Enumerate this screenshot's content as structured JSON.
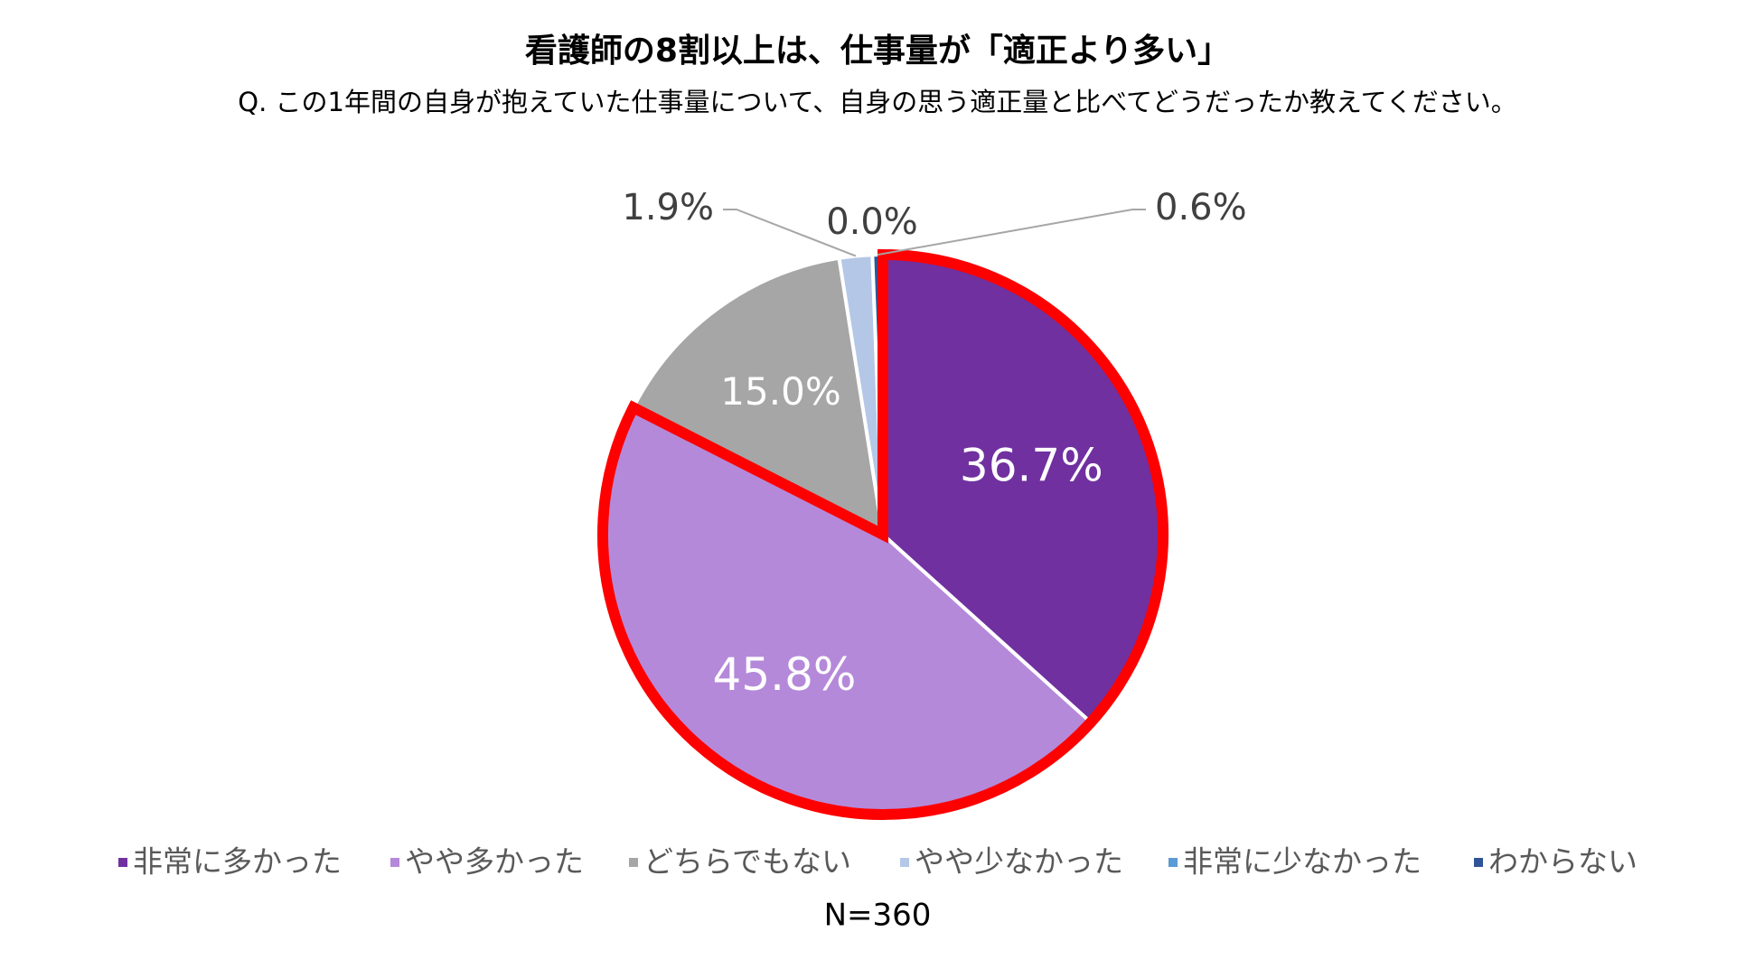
{
  "chart_data": {
    "type": "pie",
    "title": "看護師の8割以上は、仕事量が「適正より多い」",
    "subtitle": "Q. この1年間の自身が抱えていた仕事量について、自身の思う適正量と比べてどうだったか教えてください。",
    "categories": [
      "非常に多かった",
      "やや多かった",
      "どちらでもない",
      "やや少なかった",
      "非常に少なかった",
      "わからない"
    ],
    "values": [
      36.7,
      45.8,
      15.0,
      1.9,
      0.0,
      0.6
    ],
    "value_labels": [
      "36.7%",
      "45.8%",
      "15.0%",
      "1.9%",
      "0.0%",
      "0.6%"
    ],
    "colors": [
      "#7030a0",
      "#b589d9",
      "#a6a6a6",
      "#b4c7e7",
      "#5b9bd5",
      "#2f5597"
    ],
    "highlight": [
      0,
      1
    ],
    "highlight_color": "#ff0000",
    "annotation": "N=360"
  }
}
